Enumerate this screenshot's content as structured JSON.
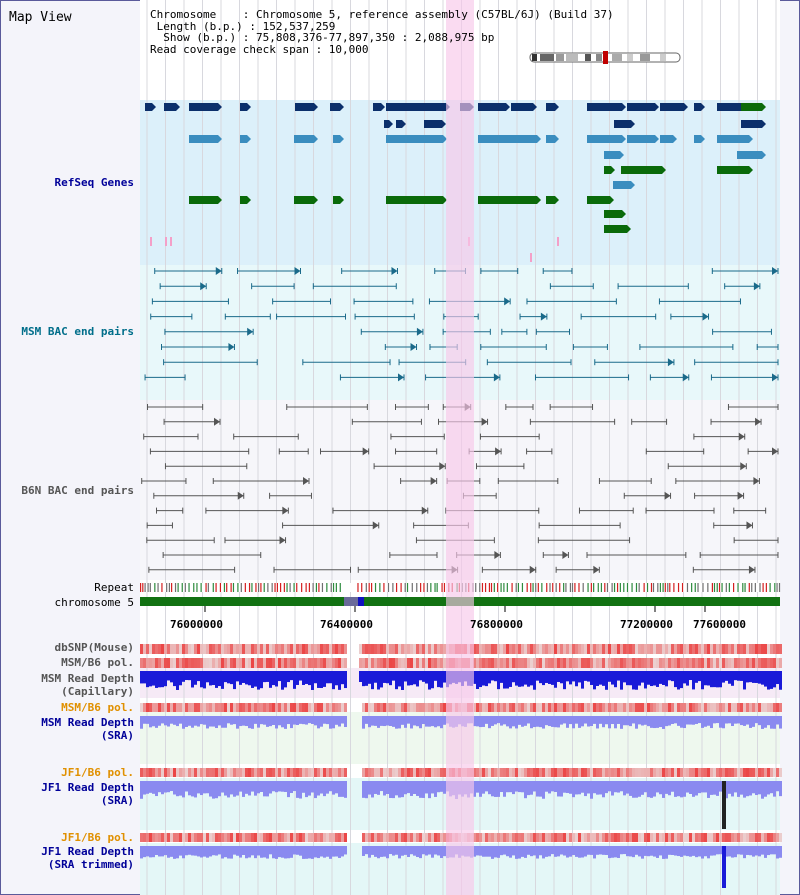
{
  "header": {
    "view_title": "Map View",
    "chromosome_line": "Chromosome    : Chromosome 5, reference assembly (C57BL/6J) (Build 37)",
    "length_line": " Length (b.p.) : 152,537,259",
    "show_line": "  Show (b.p.) : 75,808,376-77,897,350 : 2,088,975 bp",
    "coverage_line": "Read coverage check span : 10,000"
  },
  "tracks": {
    "refseq": "RefSeq Genes",
    "msm_bac": "MSM BAC end pairs",
    "b6n_bac": "B6N BAC end pairs",
    "repeat": "Repeat",
    "chromosome": "chromosome 5",
    "dbsnp": "dbSNP(Mouse)",
    "msm_b6_pol": "MSM/B6 pol.",
    "msm_depth_cap_1": "MSM Read Depth",
    "msm_depth_cap_2": "(Capillary)",
    "msm_b6_pol_sra": "MSM/B6 pol.",
    "msm_depth_sra_1": "MSM Read Depth",
    "msm_depth_sra_2": "(SRA)",
    "jf1_b6_pol": "JF1/B6 pol.",
    "jf1_depth_sra_1": "JF1 Read Depth",
    "jf1_depth_sra_2": "(SRA)",
    "jf1_b6_pol_trim": "JF1/B6 pol.",
    "jf1_depth_trim_1": "JF1 Read Depth",
    "jf1_depth_trim_2": "(SRA trimmed)"
  },
  "axis": {
    "ticks": [
      "76000000",
      "76400000",
      "76800000",
      "77200000",
      "77600000"
    ]
  },
  "colors": {
    "gene_dark": "#0b2f6b",
    "gene_mid": "#3a8dbf",
    "gene_green": "#0a6a0a",
    "msm_pair": "#1a6a8a",
    "b6n_pair": "#555555",
    "highlight": "#f7c8ea",
    "snp_red": "#e84a4a",
    "depth_blue": "#1a1ad8",
    "depth_light": "#8a8af0",
    "label_orange": "#e09000",
    "label_blue": "#000099",
    "label_teal": "#006e8a"
  }
}
